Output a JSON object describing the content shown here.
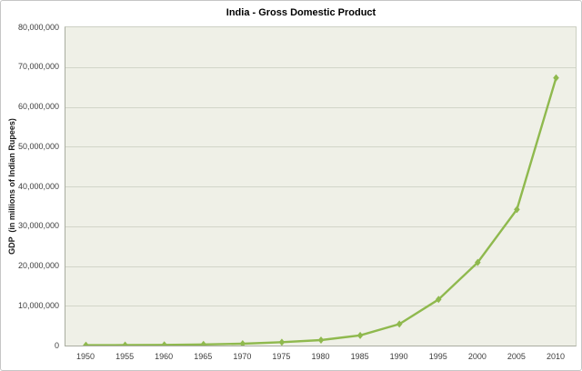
{
  "title": "India - Gross Domestic Product",
  "y_axis": {
    "label": "GDP  (in millions of Indian Rupees)",
    "ticks": [
      "0",
      "10,000,000",
      "20,000,000",
      "30,000,000",
      "40,000,000",
      "50,000,000",
      "60,000,000",
      "70,000,000",
      "80,000,000"
    ]
  },
  "x_axis": {
    "ticks": [
      "1950",
      "1955",
      "1960",
      "1965",
      "1970",
      "1975",
      "1980",
      "1985",
      "1990",
      "1995",
      "2000",
      "2005",
      "2010"
    ]
  },
  "colors": {
    "line": "#8fb94e",
    "marker": "#8fb94e",
    "plot_background": "#eff0e7",
    "gridline": "#d2d5c9",
    "axis_line": "#a9aca0",
    "tick_text": "#3d3d3d",
    "title_text": "#000000",
    "chart_border": "#c6c6c6"
  },
  "chart_data": {
    "type": "line",
    "title": "India - Gross Domestic Product",
    "xlabel": "",
    "ylabel": "GDP (in millions of Indian Rupees)",
    "x": [
      1950,
      1955,
      1960,
      1965,
      1970,
      1975,
      1980,
      1985,
      1990,
      1995,
      2000,
      2005,
      2010
    ],
    "series": [
      {
        "name": "GDP (millions of Indian Rupees)",
        "values": [
          100000,
          110000,
          170000,
          280000,
          460000,
          840000,
          1380000,
          2550000,
          5400000,
          11600000,
          20900000,
          34200000,
          67300000
        ]
      }
    ],
    "ylim": [
      0,
      80000000
    ],
    "xlim": [
      1950,
      2010
    ],
    "y_tick_interval": 10000000,
    "x_tick_interval": 5,
    "grid": true,
    "legend": false,
    "marker": "diamond"
  }
}
